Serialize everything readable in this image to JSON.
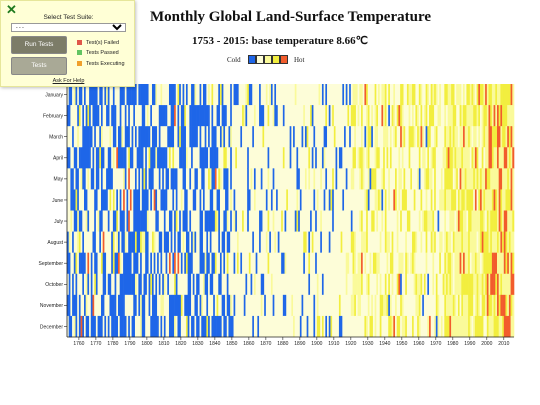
{
  "chart_data": {
    "type": "heatmap",
    "title": "Monthly Global Land-Surface Temperature",
    "subtitle": "1753 - 2015: base temperature 8.66℃",
    "year_range": [
      1753,
      2015
    ],
    "months": [
      "January",
      "February",
      "March",
      "April",
      "May",
      "June",
      "July",
      "August",
      "September",
      "October",
      "November",
      "December"
    ],
    "x_ticks": [
      1760,
      1770,
      1780,
      1790,
      1800,
      1810,
      1820,
      1830,
      1840,
      1850,
      1860,
      1870,
      1880,
      1890,
      1900,
      1910,
      1920,
      1930,
      1940,
      1950,
      1960,
      1970,
      1980,
      1990,
      2000,
      2010
    ],
    "legend": {
      "low_label": "Cold",
      "high_label": "Hot",
      "colors": [
        "#1e66e8",
        "#fdfdd8",
        "#fafa9a",
        "#f2ee3f",
        "#f25c2c"
      ]
    },
    "period_profile": [
      {
        "from": 1753,
        "to": 1850,
        "blue": 0.5,
        "pale": 0.4,
        "yellow": 0.08,
        "red": 0.02
      },
      {
        "from": 1850,
        "to": 1920,
        "blue": 0.12,
        "pale": 0.8,
        "yellow": 0.08,
        "red": 0.0
      },
      {
        "from": 1920,
        "to": 1975,
        "blue": 0.03,
        "pale": 0.55,
        "yellow": 0.4,
        "red": 0.02
      },
      {
        "from": 1975,
        "to": 2000,
        "blue": 0.0,
        "pale": 0.15,
        "yellow": 0.8,
        "red": 0.05
      },
      {
        "from": 2000,
        "to": 2016,
        "blue": 0.0,
        "pale": 0.0,
        "yellow": 0.75,
        "red": 0.25
      }
    ]
  },
  "test_panel": {
    "title": "Select Test Suite:",
    "select_value": "- - -",
    "run_label": "Run Tests",
    "tests_label": "Tests",
    "status": [
      {
        "label": "Test(s) Failed",
        "color": "#e0564a"
      },
      {
        "label": "Tests Passed",
        "color": "#62c462"
      },
      {
        "label": "Tests Executing",
        "color": "#f0a02c"
      }
    ],
    "help_label": "Ask For Help"
  }
}
